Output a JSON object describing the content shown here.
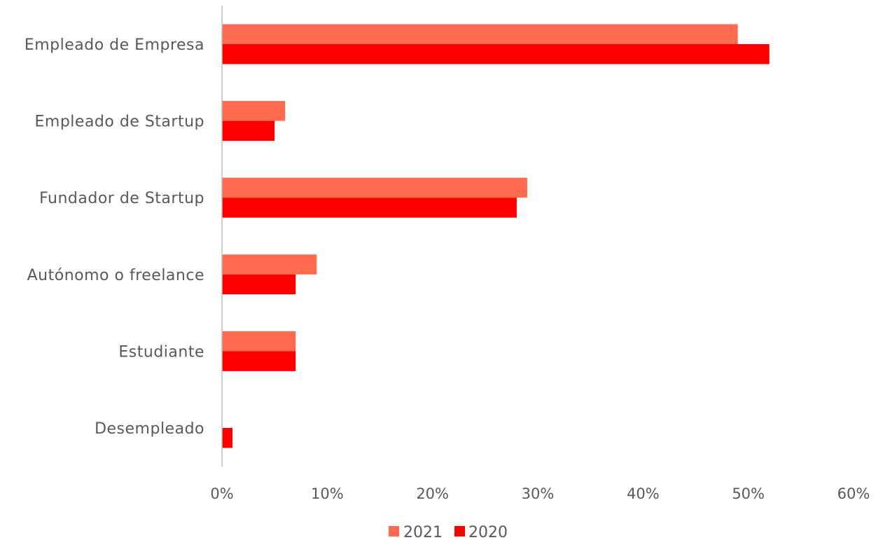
{
  "chart_data": {
    "type": "bar",
    "orientation": "horizontal",
    "categories": [
      "Empleado de Empresa",
      "Empleado de Startup",
      "Fundador de Startup",
      "Autónomo o freelance",
      "Estudiante",
      "Desempleado"
    ],
    "series": [
      {
        "name": "2021",
        "color": "#ff6b4f",
        "values": [
          49,
          6,
          29,
          9,
          7,
          0
        ]
      },
      {
        "name": "2020",
        "color": "#ff0000",
        "values": [
          52,
          5,
          28,
          7,
          7,
          1
        ]
      }
    ],
    "xlim": [
      0,
      60
    ],
    "xticks": [
      0,
      10,
      20,
      30,
      40,
      50,
      60
    ],
    "xtick_labels": [
      "0%",
      "10%",
      "20%",
      "30%",
      "40%",
      "50%",
      "60%"
    ],
    "grid": false,
    "legend_position": "bottom",
    "axis_color": "#bfbfbf",
    "text_color": "#595959"
  }
}
